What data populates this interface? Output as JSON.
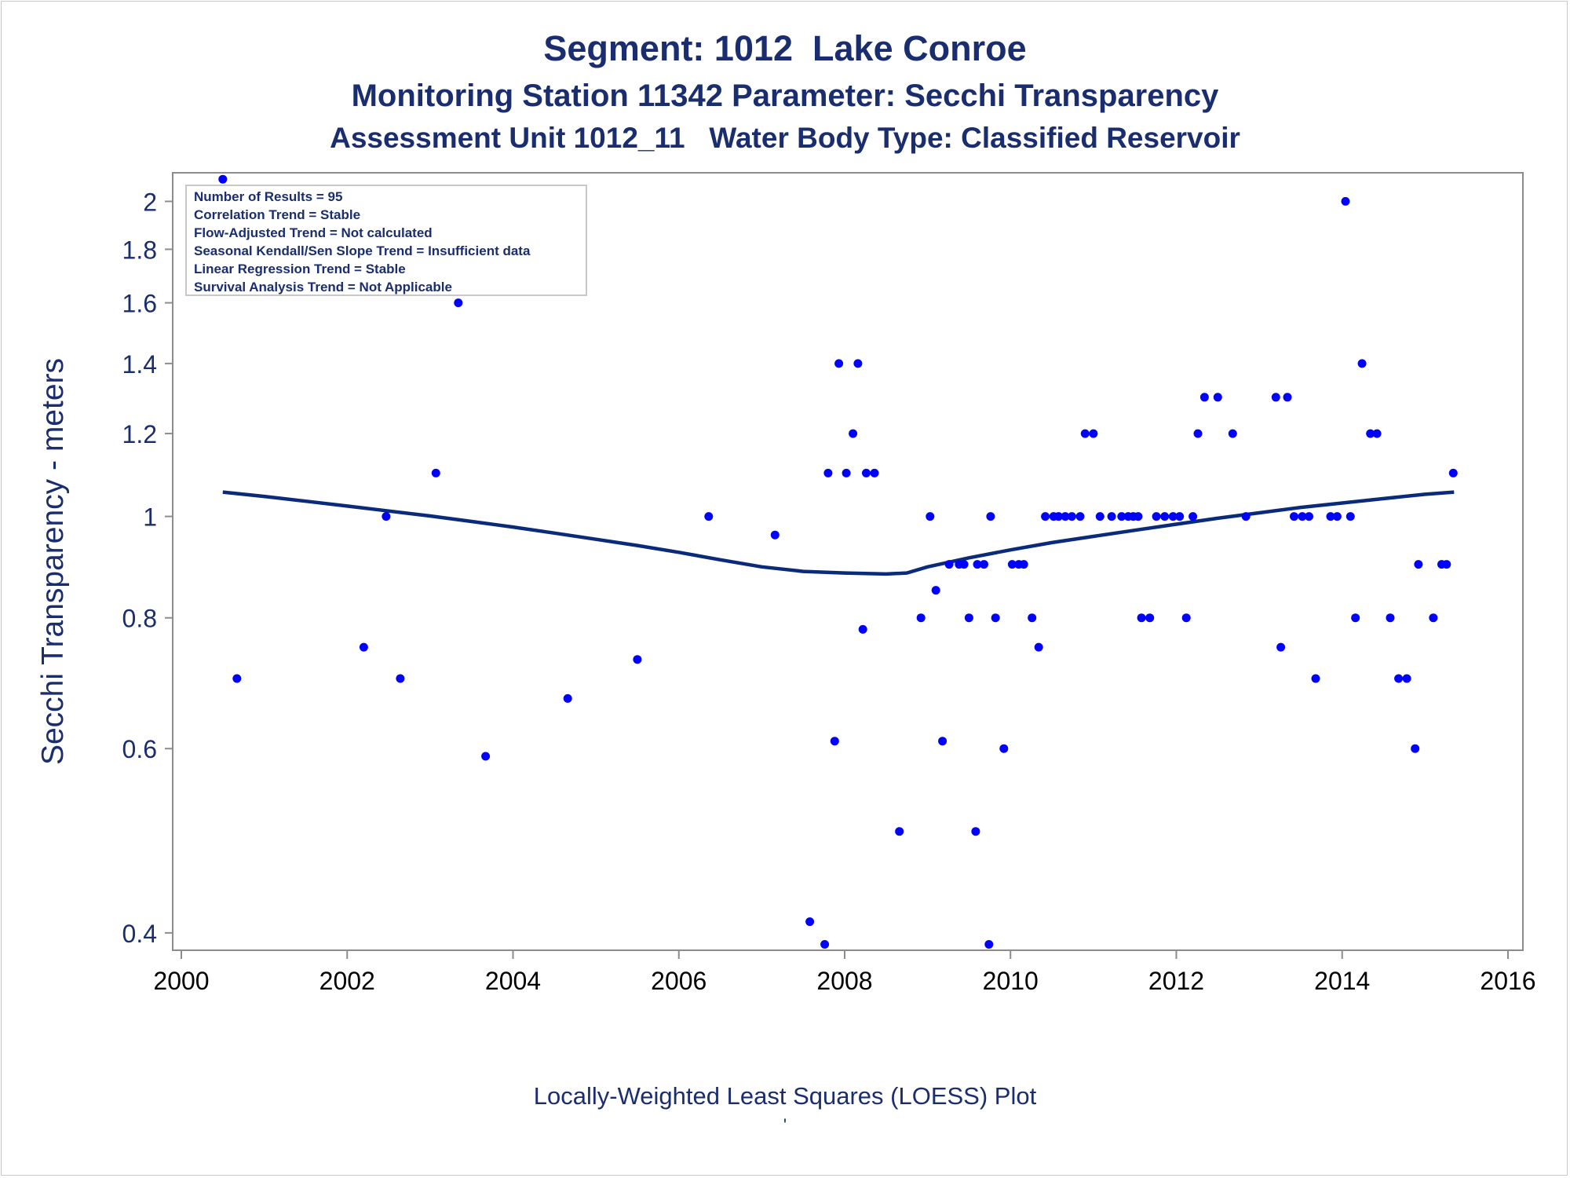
{
  "titles": {
    "line1": "Segment: 1012  Lake Conroe",
    "line2": "Monitoring Station 11342 Parameter: Secchi Transparency",
    "line3": "Assessment Unit 1012_11   Water Body Type: Classified Reservoir"
  },
  "footnote": "Locally-Weighted Least Squares (LOESS) Plot",
  "footnote_mark": "'",
  "info_box": [
    "Number of Results = 95",
    "Correlation Trend = Stable",
    "Flow-Adjusted Trend = Not calculated",
    "Seasonal Kendall/Sen Slope Trend = Insufficient data",
    "Linear Regression Trend = Stable",
    "Survival Analysis Trend = Not Applicable"
  ],
  "colors": {
    "title": "#1a2d6e",
    "points": "#0000ff",
    "loess_line": "#0a2a7a",
    "frame": "#8c8c8c"
  },
  "chart_data": {
    "type": "scatter",
    "title": "",
    "xlabel": "",
    "ylabel": "Secchi Transparency - meters",
    "y_scale": "log",
    "xlim": [
      2000,
      2016
    ],
    "ylim": [
      0.385,
      2.13
    ],
    "x_ticks": [
      2000,
      2002,
      2004,
      2006,
      2008,
      2010,
      2012,
      2014,
      2016
    ],
    "y_ticks": [
      0.4,
      0.6,
      0.8,
      1,
      1.2,
      1.4,
      1.6,
      1.8,
      2
    ],
    "y_tick_labels": [
      "0.4",
      "0.6",
      "0.8",
      "1",
      "1.2",
      "1.4",
      "1.6",
      "1.8",
      "2"
    ],
    "grid": false,
    "legend": "none",
    "series": [
      {
        "name": "",
        "kind": "points",
        "x": [
          2000.5,
          2000.67,
          2002.2,
          2002.47,
          2002.64,
          2003.07,
          2003.34,
          2003.67,
          2004.66,
          2005.5,
          2006.36,
          2007.16,
          2007.58,
          2007.76,
          2007.8,
          2007.88,
          2007.93,
          2008.02,
          2008.1,
          2008.16,
          2008.22,
          2008.26,
          2008.36,
          2008.66,
          2008.92,
          2009.03,
          2009.1,
          2009.18,
          2009.26,
          2009.38,
          2009.44,
          2009.5,
          2009.58,
          2009.6,
          2009.68,
          2009.74,
          2009.76,
          2009.82,
          2009.92,
          2010.02,
          2010.1,
          2010.16,
          2010.26,
          2010.34,
          2010.42,
          2010.52,
          2010.58,
          2010.66,
          2010.74,
          2010.84,
          2010.9,
          2011.0,
          2011.08,
          2011.22,
          2011.34,
          2011.42,
          2011.48,
          2011.54,
          2011.58,
          2011.68,
          2011.76,
          2011.86,
          2011.96,
          2012.04,
          2012.12,
          2012.2,
          2012.26,
          2012.34,
          2012.5,
          2012.68,
          2012.84,
          2013.2,
          2013.26,
          2013.34,
          2013.42,
          2013.52,
          2013.6,
          2013.68,
          2013.86,
          2013.94,
          2014.04,
          2014.1,
          2014.16,
          2014.24,
          2014.34,
          2014.42,
          2014.58,
          2014.68,
          2014.78,
          2014.88,
          2014.92,
          2015.1,
          2015.2,
          2015.26,
          2015.34
        ],
        "y": [
          2.1,
          0.7,
          0.75,
          1.0,
          0.7,
          1.1,
          1.6,
          0.59,
          0.67,
          0.73,
          1.0,
          0.96,
          0.41,
          0.39,
          1.1,
          0.61,
          1.4,
          1.1,
          1.2,
          1.4,
          0.78,
          1.1,
          1.1,
          0.5,
          0.8,
          1.0,
          0.85,
          0.61,
          0.9,
          0.9,
          0.9,
          0.8,
          0.5,
          0.9,
          0.9,
          0.39,
          1.0,
          0.8,
          0.6,
          0.9,
          0.9,
          0.9,
          0.8,
          0.75,
          1.0,
          1.0,
          1.0,
          1.0,
          1.0,
          1.0,
          1.2,
          1.2,
          1.0,
          1.0,
          1.0,
          1.0,
          1.0,
          1.0,
          0.8,
          0.8,
          1.0,
          1.0,
          1.0,
          1.0,
          0.8,
          1.0,
          1.2,
          1.3,
          1.3,
          1.2,
          1.0,
          1.3,
          0.75,
          1.3,
          1.0,
          1.0,
          1.0,
          0.7,
          1.0,
          1.0,
          2.0,
          1.0,
          0.8,
          1.4,
          1.2,
          1.2,
          0.8,
          0.7,
          0.7,
          0.6,
          0.9,
          0.8,
          0.9,
          0.9,
          1.1
        ]
      },
      {
        "name": "",
        "kind": "line",
        "x": [
          2000.5,
          2001.0,
          2001.5,
          2002.0,
          2002.5,
          2003.0,
          2003.5,
          2004.0,
          2004.5,
          2005.0,
          2005.5,
          2006.0,
          2006.5,
          2007.0,
          2007.5,
          2008.0,
          2008.5,
          2008.75,
          2009.0,
          2009.5,
          2010.0,
          2010.5,
          2011.0,
          2011.5,
          2012.0,
          2012.5,
          2013.0,
          2013.5,
          2014.0,
          2014.5,
          2015.0,
          2015.35
        ],
        "y": [
          1.055,
          1.045,
          1.034,
          1.023,
          1.012,
          1.001,
          0.989,
          0.977,
          0.964,
          0.951,
          0.938,
          0.924,
          0.909,
          0.895,
          0.886,
          0.883,
          0.881,
          0.883,
          0.895,
          0.913,
          0.929,
          0.944,
          0.957,
          0.97,
          0.983,
          0.996,
          1.008,
          1.02,
          1.03,
          1.04,
          1.05,
          1.055
        ]
      }
    ]
  }
}
